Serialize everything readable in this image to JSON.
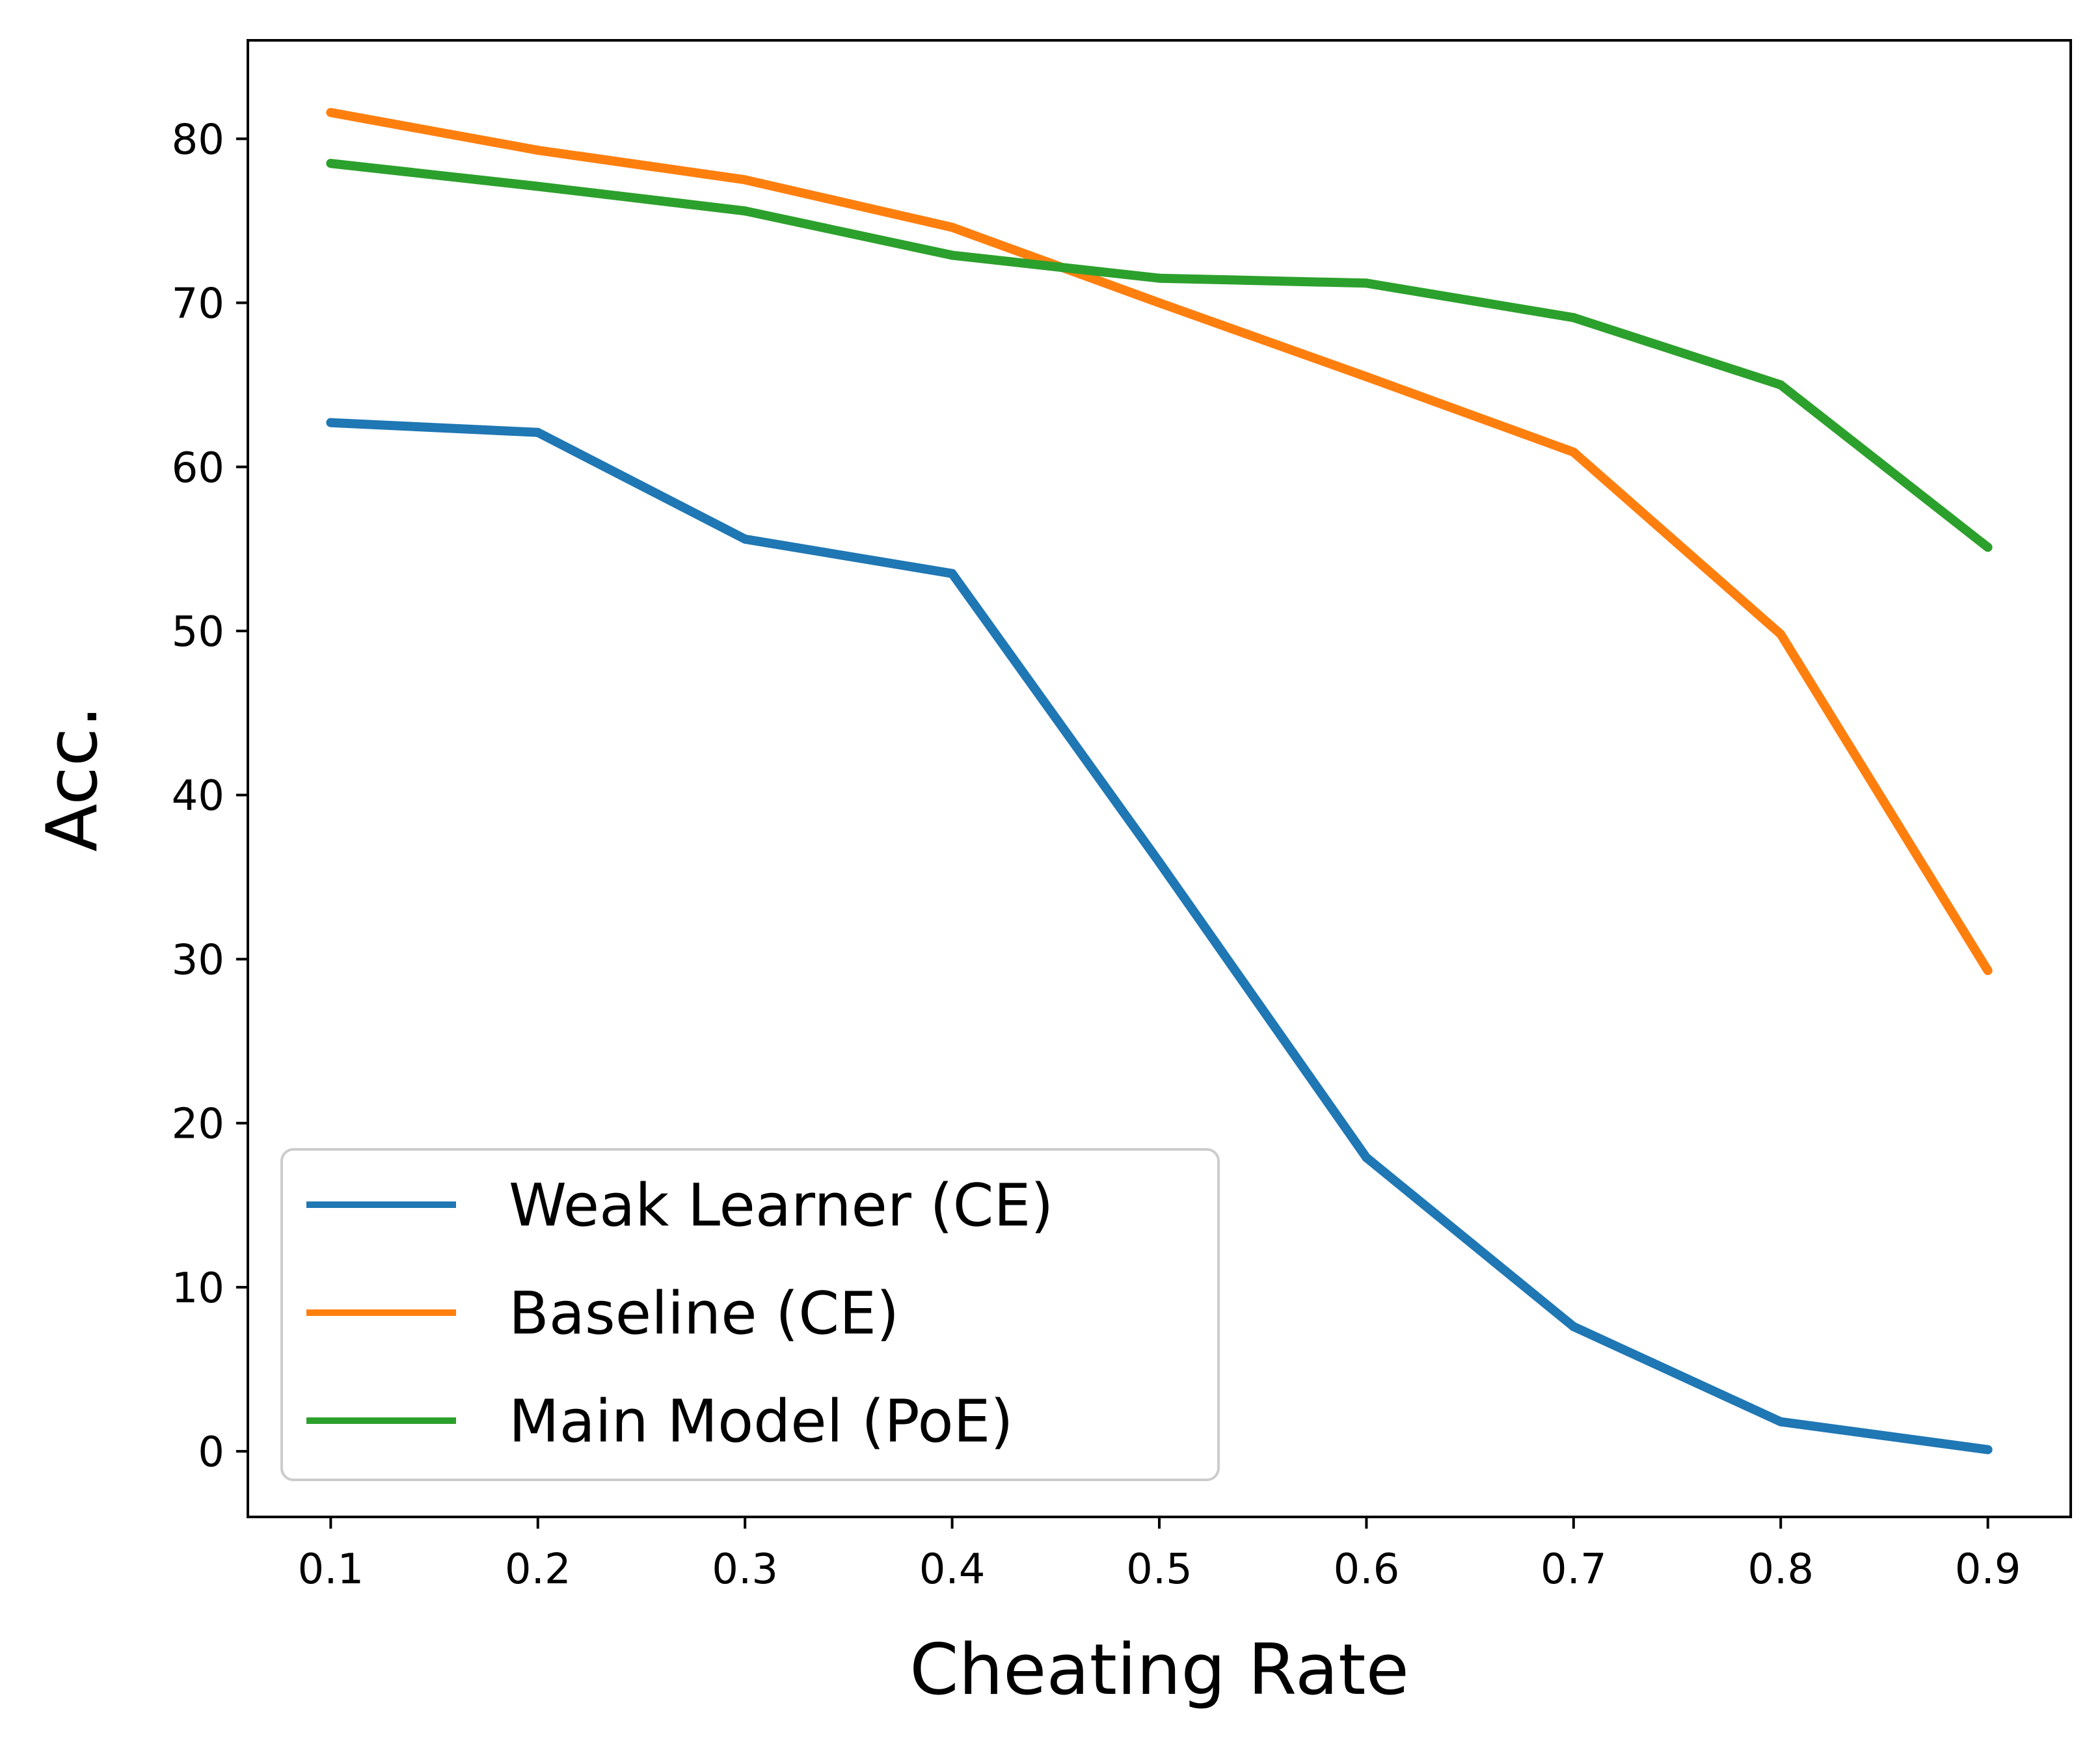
{
  "chart_data": {
    "type": "line",
    "title": "",
    "xlabel": "Cheating Rate",
    "ylabel": "Acc.",
    "x": [
      0.1,
      0.2,
      0.3,
      0.4,
      0.5,
      0.6,
      0.7,
      0.8,
      0.9
    ],
    "xlim": [
      0.06,
      0.94
    ],
    "ylim": [
      -4,
      86
    ],
    "xticks": [
      "0.1",
      "0.2",
      "0.3",
      "0.4",
      "0.5",
      "0.6",
      "0.7",
      "0.8",
      "0.9"
    ],
    "yticks": [
      "0",
      "10",
      "20",
      "30",
      "40",
      "50",
      "60",
      "70",
      "80"
    ],
    "grid": false,
    "legend_position": "lower-left",
    "series": [
      {
        "name": "Weak Learner  (CE)",
        "color": "#1f77b4",
        "values": [
          62.7,
          62.1,
          55.6,
          53.5,
          35.9,
          17.9,
          7.6,
          1.8,
          0.1
        ]
      },
      {
        "name": "Baseline (CE)",
        "color": "#ff7f0e",
        "values": [
          81.6,
          79.3,
          77.5,
          74.6,
          70.0,
          65.5,
          60.9,
          49.8,
          29.3
        ]
      },
      {
        "name": "Main Model (PoE)",
        "color": "#2ca02c",
        "values": [
          78.5,
          77.1,
          75.6,
          72.9,
          71.5,
          71.2,
          69.1,
          65.0,
          55.1
        ]
      }
    ]
  }
}
